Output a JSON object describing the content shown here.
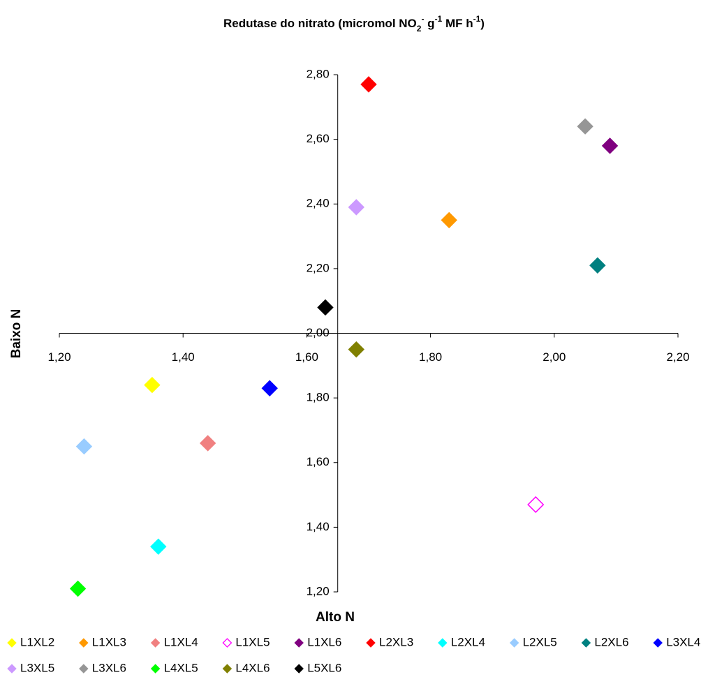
{
  "chart_data": {
    "type": "scatter",
    "title": [
      {
        "text": "Redutase do nitrato (micromol NO"
      },
      {
        "text": "2",
        "baseline": "sub"
      },
      {
        "text": "-",
        "baseline": "super"
      },
      {
        "text": " g"
      },
      {
        "text": "-1",
        "baseline": "super"
      },
      {
        "text": " MF h"
      },
      {
        "text": "-1",
        "baseline": "super"
      },
      {
        "text": ")"
      }
    ],
    "x_label": "Alto N",
    "y_label": "Baixo N",
    "xlim": [
      1.2,
      2.2
    ],
    "ylim": [
      1.2,
      2.8
    ],
    "xticks": [
      {
        "value": 1.2,
        "label": "1,20"
      },
      {
        "value": 1.4,
        "label": "1,40"
      },
      {
        "value": 1.6,
        "label": "1,60"
      },
      {
        "value": 1.8,
        "label": "1,80"
      },
      {
        "value": 2.0,
        "label": "2,00"
      },
      {
        "value": 2.2,
        "label": "2,20"
      }
    ],
    "yticks": [
      {
        "value": 1.2,
        "label": "1,20"
      },
      {
        "value": 1.4,
        "label": "1,40"
      },
      {
        "value": 1.6,
        "label": "1,60"
      },
      {
        "value": 1.8,
        "label": "1,80"
      },
      {
        "value": 2.0,
        "label": "2,00"
      },
      {
        "value": 2.2,
        "label": "2,20"
      },
      {
        "value": 2.4,
        "label": "2,40"
      },
      {
        "value": 2.6,
        "label": "2,60"
      },
      {
        "value": 2.8,
        "label": "2,80"
      }
    ],
    "x_axis_crosses": 2.0,
    "y_axis_crosses": 1.65,
    "legend": "bottom",
    "series": [
      {
        "name": "L1XL2",
        "color": "#ffff00",
        "x": [
          1.35
        ],
        "y": [
          1.84
        ]
      },
      {
        "name": "L1XL3",
        "color": "#ff9900",
        "x": [
          1.83
        ],
        "y": [
          2.35
        ]
      },
      {
        "name": "L1XL4",
        "color": "#f08080",
        "x": [
          1.44
        ],
        "y": [
          1.66
        ]
      },
      {
        "name": "L1XL5",
        "color": "#ff00ff",
        "x": [
          1.97
        ],
        "y": [
          1.47
        ],
        "hollow": true
      },
      {
        "name": "L1XL6",
        "color": "#800080",
        "x": [
          2.09
        ],
        "y": [
          2.58
        ]
      },
      {
        "name": "L2XL3",
        "color": "#ff0000",
        "x": [
          1.7
        ],
        "y": [
          2.77
        ]
      },
      {
        "name": "L2XL4",
        "color": "#00ffff",
        "x": [
          1.36
        ],
        "y": [
          1.34
        ]
      },
      {
        "name": "L2XL5",
        "color": "#99ccff",
        "x": [
          1.24
        ],
        "y": [
          1.65
        ]
      },
      {
        "name": "L2XL6",
        "color": "#008080",
        "x": [
          2.07
        ],
        "y": [
          2.21
        ]
      },
      {
        "name": "L3XL4",
        "color": "#0000ff",
        "x": [
          1.54
        ],
        "y": [
          1.83
        ]
      },
      {
        "name": "L3XL5",
        "color": "#cc99ff",
        "x": [
          1.68
        ],
        "y": [
          2.39
        ]
      },
      {
        "name": "L3XL6",
        "color": "#969696",
        "x": [
          2.05
        ],
        "y": [
          2.64
        ]
      },
      {
        "name": "L4XL5",
        "color": "#00ff00",
        "x": [
          1.23
        ],
        "y": [
          1.21
        ]
      },
      {
        "name": "L4XL6",
        "color": "#808000",
        "x": [
          1.68
        ],
        "y": [
          1.95
        ]
      },
      {
        "name": "L5XL6",
        "color": "#000000",
        "x": [
          1.63
        ],
        "y": [
          2.08
        ]
      }
    ]
  }
}
